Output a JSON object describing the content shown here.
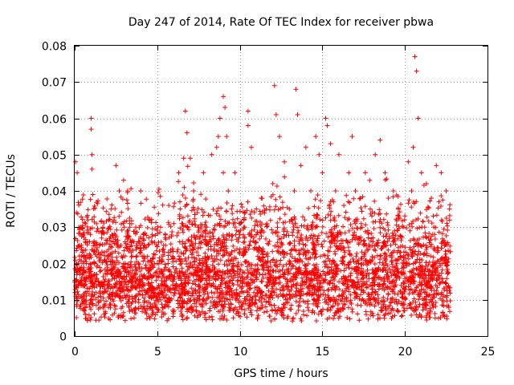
{
  "chart_data": {
    "type": "scatter",
    "title": "Day 247 of 2014, Rate Of TEC Index for receiver pbwa",
    "xlabel": "GPS time / hours",
    "ylabel": "ROTI / TECUs",
    "xlim": [
      0,
      25
    ],
    "ylim": [
      0,
      0.08
    ],
    "grid": true,
    "marker": "+",
    "series_color": "#ff0000",
    "x_ticks": [
      "0",
      "5",
      "10",
      "15",
      "20",
      "25"
    ],
    "y_ticks": [
      "0",
      "0.01",
      "0.02",
      "0.03",
      "0.04",
      "0.05",
      "0.06",
      "0.07",
      "0.08"
    ],
    "x_tick_values": [
      0,
      5,
      10,
      15,
      20,
      25
    ],
    "y_tick_values": [
      0,
      0.01,
      0.02,
      0.03,
      0.04,
      0.05,
      0.06,
      0.07,
      0.08
    ],
    "series": [
      {
        "name": "ROTI",
        "x": [
          0.02,
          0.05,
          0.1,
          0.1,
          0.15,
          0.2,
          0.25,
          0.3,
          0.35,
          0.4,
          0.5,
          0.6,
          0.7,
          0.8,
          0.9,
          1.0,
          1.0,
          1.05,
          1.05,
          1.1,
          1.2,
          1.3,
          1.5,
          1.7,
          2.0,
          2.2,
          2.5,
          2.7,
          2.8,
          3.0,
          3.2,
          3.5,
          3.7,
          4.0,
          4.2,
          4.5,
          4.7,
          5.0,
          5.2,
          5.5,
          5.7,
          6.0,
          6.3,
          6.6,
          6.7,
          6.8,
          7.0,
          7.2,
          7.5,
          7.8,
          8.0,
          8.3,
          8.6,
          8.7,
          8.8,
          9.0,
          9.0,
          9.1,
          9.2,
          9.3,
          9.5,
          9.7,
          10.0,
          10.3,
          10.5,
          10.5,
          10.7,
          11.0,
          11.3,
          11.6,
          12.0,
          12.1,
          12.2,
          12.4,
          12.7,
          13.0,
          13.3,
          13.4,
          13.5,
          13.7,
          14.0,
          14.3,
          14.6,
          14.8,
          15.0,
          15.2,
          15.3,
          15.5,
          15.8,
          16.0,
          16.3,
          16.6,
          16.8,
          17.0,
          17.3,
          17.6,
          17.9,
          18.2,
          18.5,
          18.8,
          19.0,
          19.3,
          19.6,
          19.9,
          20.2,
          20.4,
          20.5,
          20.6,
          20.7,
          20.8,
          21.0,
          21.3,
          21.6,
          21.9,
          22.2,
          22.5,
          22.7
        ],
        "y": [
          0.012,
          0.048,
          0.02,
          0.034,
          0.045,
          0.015,
          0.03,
          0.025,
          0.018,
          0.022,
          0.028,
          0.014,
          0.02,
          0.032,
          0.026,
          0.057,
          0.06,
          0.05,
          0.046,
          0.039,
          0.02,
          0.017,
          0.025,
          0.03,
          0.018,
          0.035,
          0.047,
          0.04,
          0.025,
          0.03,
          0.04,
          0.022,
          0.03,
          0.04,
          0.025,
          0.032,
          0.028,
          0.02,
          0.03,
          0.025,
          0.036,
          0.031,
          0.045,
          0.049,
          0.062,
          0.056,
          0.049,
          0.04,
          0.03,
          0.045,
          0.03,
          0.05,
          0.052,
          0.055,
          0.06,
          0.045,
          0.066,
          0.063,
          0.055,
          0.04,
          0.035,
          0.045,
          0.028,
          0.03,
          0.062,
          0.058,
          0.052,
          0.028,
          0.038,
          0.035,
          0.042,
          0.069,
          0.061,
          0.055,
          0.048,
          0.035,
          0.04,
          0.068,
          0.061,
          0.047,
          0.052,
          0.04,
          0.055,
          0.05,
          0.045,
          0.06,
          0.058,
          0.053,
          0.04,
          0.05,
          0.036,
          0.045,
          0.055,
          0.04,
          0.038,
          0.045,
          0.035,
          0.05,
          0.054,
          0.045,
          0.038,
          0.04,
          0.035,
          0.03,
          0.048,
          0.04,
          0.052,
          0.077,
          0.073,
          0.06,
          0.045,
          0.042,
          0.038,
          0.047,
          0.045,
          0.04,
          0.035
        ]
      }
    ]
  }
}
